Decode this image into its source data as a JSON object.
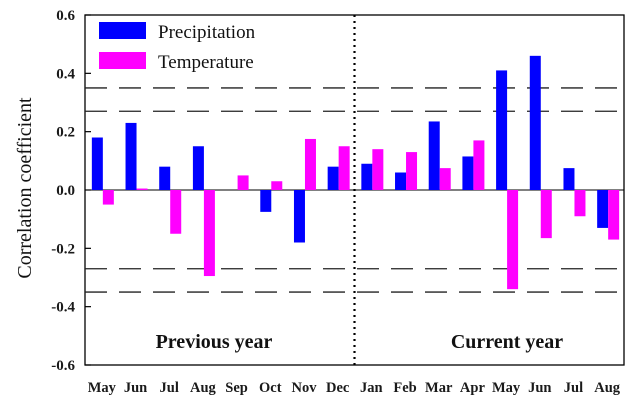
{
  "chart_data": {
    "type": "bar",
    "title": "",
    "xlabel": "",
    "ylabel": "Correlation coefficient",
    "ylim": [
      -0.6,
      0.6
    ],
    "yticks": [
      "0.6",
      "0.4",
      "0.2",
      "0.0",
      "-0.2",
      "-0.4",
      "-0.6"
    ],
    "yticks_values": [
      0.6,
      0.4,
      0.2,
      0.0,
      -0.2,
      -0.4,
      -0.6
    ],
    "categories": [
      "May",
      "Jun",
      "Jul",
      "Aug",
      "Sep",
      "Oct",
      "Nov",
      "Dec",
      "Jan",
      "Feb",
      "Mar",
      "Apr",
      "May",
      "Jun",
      "Jul",
      "Aug"
    ],
    "series": [
      {
        "name": "Precipitation",
        "color": "#0000ff",
        "values": [
          0.18,
          0.23,
          0.08,
          0.15,
          0.0,
          -0.075,
          -0.18,
          0.08,
          0.09,
          0.06,
          0.235,
          0.115,
          0.41,
          0.46,
          0.075,
          -0.13
        ]
      },
      {
        "name": "Temperature",
        "color": "#ff00ff",
        "values": [
          -0.05,
          0.005,
          -0.15,
          -0.295,
          0.05,
          0.03,
          0.175,
          0.15,
          0.14,
          0.13,
          0.075,
          0.17,
          -0.34,
          -0.165,
          -0.09,
          -0.17
        ]
      }
    ],
    "reference_lines": [
      0.35,
      0.27,
      -0.27,
      -0.35
    ],
    "period_labels": [
      "Previous year",
      "Current year"
    ],
    "period_divider_after_index": 7,
    "legend_position": "top-left",
    "grid": false
  }
}
